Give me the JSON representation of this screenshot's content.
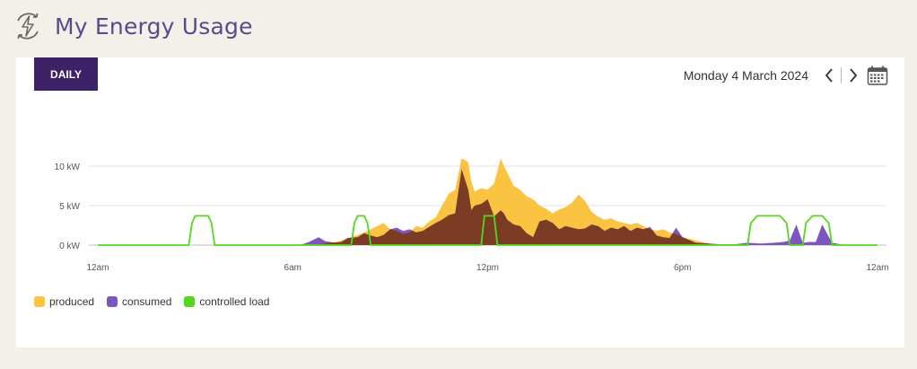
{
  "page": {
    "title": "My Energy Usage"
  },
  "header": {
    "icon": "energy-bolt-icon"
  },
  "period_tab": {
    "label": "DAILY"
  },
  "date_nav": {
    "date": "Monday 4 March 2024",
    "prev_icon": "chevron-left-icon",
    "next_icon": "chevron-right-icon",
    "calendar_icon": "calendar-icon"
  },
  "colors": {
    "accent": "#3e2267",
    "produced": "#fbc342",
    "consumed": "#7e55c0",
    "overlap": "#7a3c22",
    "controlled_load": "#52d91e"
  },
  "chart_data": {
    "type": "area",
    "title": "",
    "xlabel": "",
    "ylabel": "",
    "y_ticks": [
      "0 kW",
      "5 kW",
      "10 kW"
    ],
    "ylim": [
      0,
      12
    ],
    "xlim": [
      0,
      24
    ],
    "x_ticks": [
      {
        "value": 0,
        "label": "12am"
      },
      {
        "value": 6,
        "label": "6am"
      },
      {
        "value": 12,
        "label": "12pm"
      },
      {
        "value": 18,
        "label": "6pm"
      },
      {
        "value": 24,
        "label": "12am"
      }
    ],
    "grid": true,
    "legend_position": "bottom-left",
    "series": [
      {
        "name": "produced",
        "x": [
          6.5,
          6.8,
          7,
          7.3,
          7.5,
          7.7,
          8,
          8.2,
          8.4,
          8.6,
          8.8,
          9,
          9.2,
          9.4,
          9.6,
          9.8,
          10,
          10.2,
          10.4,
          10.6,
          10.8,
          11,
          11.2,
          11.4,
          11.5,
          11.6,
          11.8,
          12,
          12.2,
          12.4,
          12.5,
          12.6,
          12.8,
          13,
          13.2,
          13.4,
          13.6,
          13.8,
          14,
          14.2,
          14.4,
          14.6,
          14.8,
          15,
          15.2,
          15.4,
          15.6,
          15.8,
          16,
          16.2,
          16.4,
          16.6,
          16.8,
          17,
          17.2,
          17.4,
          17.6,
          17.8,
          18,
          18.2,
          18.4,
          18.6,
          18.8,
          19,
          19.3
        ],
        "values": [
          0,
          0.1,
          0.2,
          0.4,
          0.6,
          0.9,
          1.3,
          1.6,
          2.0,
          2.4,
          2.8,
          2.0,
          1.8,
          1.4,
          1.6,
          2.4,
          2.2,
          3.0,
          3.5,
          5.0,
          6.5,
          7.0,
          11.0,
          10.5,
          8.0,
          6.8,
          7.2,
          7.0,
          7.8,
          11.0,
          10.0,
          9.2,
          7.5,
          7.0,
          6.2,
          5.8,
          5.0,
          4.6,
          4.0,
          4.5,
          4.8,
          5.4,
          6.4,
          5.6,
          4.2,
          3.6,
          3.2,
          3.4,
          3.0,
          2.8,
          2.6,
          2.8,
          2.4,
          2.0,
          1.8,
          2.0,
          1.6,
          1.4,
          1.0,
          0.8,
          0.6,
          0.4,
          0.2,
          0.1,
          0
        ]
      },
      {
        "name": "consumed",
        "x": [
          6.0,
          6.3,
          6.5,
          6.8,
          7.0,
          7.3,
          7.5,
          7.7,
          8,
          8.2,
          8.4,
          8.6,
          8.8,
          9,
          9.2,
          9.4,
          9.6,
          9.8,
          10,
          10.2,
          10.4,
          10.6,
          10.8,
          11,
          11.2,
          11.4,
          11.5,
          11.6,
          11.8,
          12,
          12.2,
          12.4,
          12.5,
          12.6,
          12.8,
          13,
          13.2,
          13.4,
          13.6,
          13.8,
          14,
          14.2,
          14.4,
          14.6,
          14.8,
          15,
          15.2,
          15.4,
          15.6,
          15.8,
          16,
          16.2,
          16.4,
          16.6,
          16.8,
          17,
          17.2,
          17.4,
          17.6,
          17.8,
          18,
          18.4,
          18.8,
          19.2,
          19.6,
          20,
          20.4,
          20.8,
          21.1,
          21.3,
          21.5,
          21.7,
          21.9,
          22.1,
          22.3,
          22.6,
          23
        ],
        "values": [
          0,
          0.1,
          0.4,
          1.0,
          0.5,
          0.3,
          0.4,
          0.9,
          1.0,
          1.5,
          1.2,
          1.0,
          1.3,
          2.0,
          2.2,
          1.8,
          2.0,
          1.6,
          1.8,
          2.3,
          2.8,
          3.2,
          3.8,
          4.0,
          9.6,
          7.0,
          4.4,
          5.0,
          5.2,
          5.8,
          3.6,
          4.4,
          4.0,
          3.2,
          2.6,
          2.4,
          1.5,
          1.0,
          3.0,
          3.2,
          2.8,
          2.0,
          2.4,
          2.2,
          2.0,
          2.1,
          2.6,
          2.4,
          1.8,
          2.2,
          2.0,
          2.4,
          1.8,
          2.2,
          2.0,
          2.3,
          1.2,
          1.0,
          0.9,
          2.2,
          1.0,
          0.3,
          0.2,
          0.1,
          0.1,
          0.3,
          0.2,
          0.3,
          0.4,
          0.6,
          2.6,
          0.3,
          0.4,
          0.4,
          2.6,
          0.3,
          0
        ]
      },
      {
        "name": "controlled load",
        "x": [
          0,
          2.8,
          2.9,
          3.0,
          3.4,
          3.5,
          3.6,
          7.8,
          7.9,
          8.0,
          8.2,
          8.3,
          8.4,
          11.8,
          11.9,
          12.0,
          12.2,
          12.3,
          20.0,
          20.1,
          20.3,
          21.0,
          21.2,
          21.3,
          21.7,
          21.8,
          22.0,
          22.3,
          22.5,
          22.6,
          24
        ],
        "values": [
          0,
          0,
          2.8,
          3.7,
          3.7,
          2.8,
          0,
          0,
          2.8,
          3.7,
          3.7,
          2.8,
          0,
          0,
          3.7,
          3.7,
          3.7,
          0,
          0,
          2.8,
          3.7,
          3.7,
          2.8,
          0,
          0,
          2.8,
          3.7,
          3.7,
          2.8,
          0,
          0
        ]
      }
    ]
  }
}
